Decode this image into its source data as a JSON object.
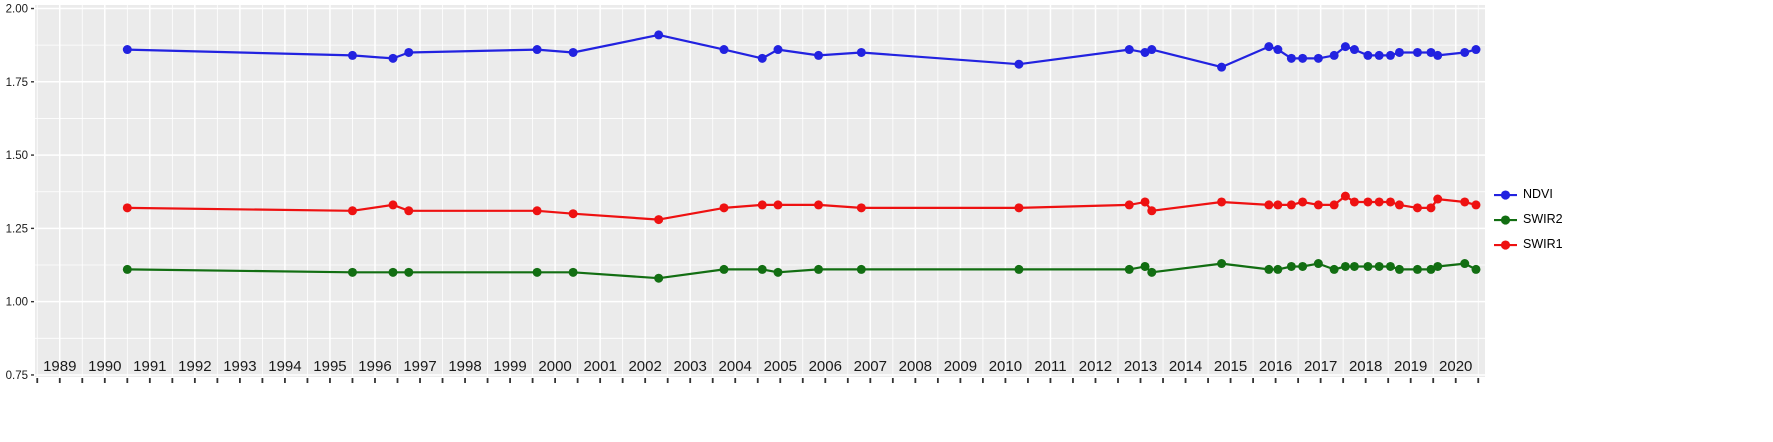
{
  "chart_data": {
    "type": "line",
    "title": "",
    "xlabel": "",
    "ylabel": "",
    "x": [
      1990.5,
      1995.5,
      1996.4,
      1996.75,
      1999.6,
      2000.4,
      2002.3,
      2003.75,
      2004.6,
      2004.95,
      2005.85,
      2006.8,
      2010.3,
      2012.75,
      2013.1,
      2013.25,
      2014.8,
      2015.85,
      2016.05,
      2016.35,
      2016.6,
      2016.95,
      2017.3,
      2017.55,
      2017.75,
      2018.05,
      2018.3,
      2018.55,
      2018.75,
      2019.15,
      2019.45,
      2019.6,
      2020.2,
      2020.45
    ],
    "series": [
      {
        "name": "NDVI",
        "color": "#2222E0",
        "values": [
          1.86,
          1.84,
          1.83,
          1.85,
          1.86,
          1.85,
          1.91,
          1.86,
          1.83,
          1.86,
          1.84,
          1.85,
          1.81,
          1.86,
          1.85,
          1.86,
          1.8,
          1.87,
          1.86,
          1.83,
          1.83,
          1.83,
          1.84,
          1.87,
          1.86,
          1.84,
          1.84,
          1.84,
          1.85,
          1.85,
          1.85,
          1.84,
          1.85,
          1.86
        ]
      },
      {
        "name": "SWIR2",
        "color": "#126E12",
        "values": [
          1.11,
          1.1,
          1.1,
          1.1,
          1.1,
          1.1,
          1.08,
          1.11,
          1.11,
          1.1,
          1.11,
          1.11,
          1.11,
          1.11,
          1.12,
          1.1,
          1.13,
          1.11,
          1.11,
          1.12,
          1.12,
          1.13,
          1.11,
          1.12,
          1.12,
          1.12,
          1.12,
          1.12,
          1.11,
          1.11,
          1.11,
          1.12,
          1.13,
          1.11
        ]
      },
      {
        "name": "SWIR1",
        "color": "#EE1111",
        "values": [
          1.32,
          1.31,
          1.33,
          1.31,
          1.31,
          1.3,
          1.28,
          1.32,
          1.33,
          1.33,
          1.33,
          1.32,
          1.32,
          1.33,
          1.34,
          1.31,
          1.34,
          1.33,
          1.33,
          1.33,
          1.34,
          1.33,
          1.33,
          1.36,
          1.34,
          1.34,
          1.34,
          1.34,
          1.33,
          1.32,
          1.32,
          1.35,
          1.34,
          1.33
        ]
      }
    ],
    "x_ticks": [
      1989,
      1990,
      1991,
      1992,
      1993,
      1994,
      1995,
      1996,
      1997,
      1998,
      1999,
      2000,
      2001,
      2002,
      2003,
      2004,
      2005,
      2006,
      2007,
      2008,
      2009,
      2010,
      2011,
      2012,
      2013,
      2014,
      2015,
      2016,
      2017,
      2018,
      2019,
      2020
    ],
    "y_ticks": [
      0.75,
      1.0,
      1.25,
      1.5,
      1.75,
      2.0
    ],
    "y_tick_labels": [
      "0.75",
      "1.00",
      "1.25",
      "1.50",
      "1.75",
      "2.00"
    ],
    "xlim": [
      1988.45,
      2020.65
    ],
    "ylim": [
      0.743,
      2.012
    ],
    "grid": true,
    "legend_position": "right",
    "legend_order": [
      "NDVI",
      "SWIR2",
      "SWIR1"
    ],
    "colors": {
      "panel_bg": "#EBEBEB",
      "grid": "#FFFFFF",
      "tick": "#333333",
      "axis_text": "#1A1A1A"
    }
  }
}
